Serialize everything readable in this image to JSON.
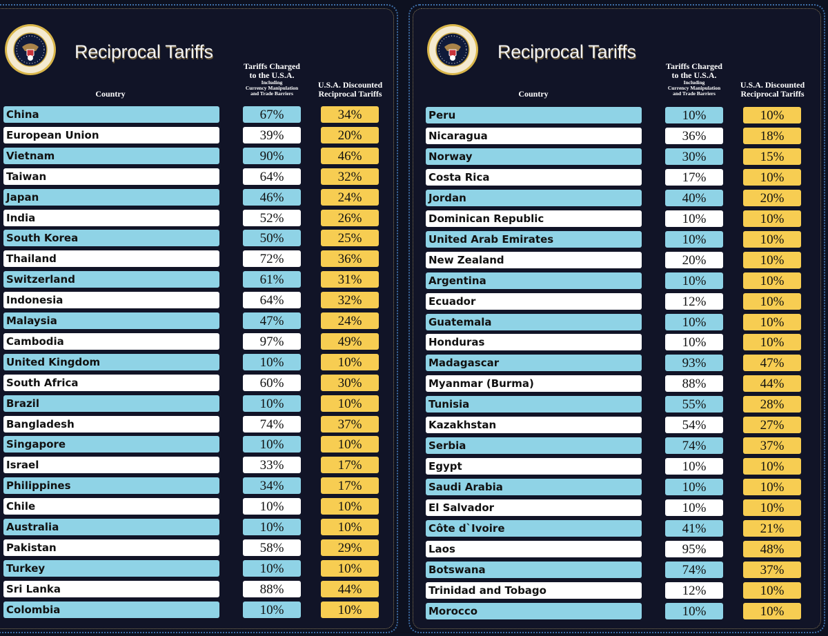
{
  "colors": {
    "blue": "#8fd3e6",
    "white": "#ffffff",
    "gold": "#f7cd52",
    "background": "#111427"
  },
  "header": {
    "title": "Reciprocal Tariffs",
    "col_country": "Country",
    "col_charged_1": "Tariffs Charged",
    "col_charged_2": "to the U.S.A.",
    "col_charged_3": "Including",
    "col_charged_4": "Currency Manipulation",
    "col_charged_5": "and Trade Barriers",
    "col_recip_1": "U.S.A. Discounted",
    "col_recip_2": "Reciprocal Tariffs",
    "seal_text": "SEAL OF THE PRESIDENT OF THE UNITED STATES"
  },
  "left_table": [
    {
      "country": "China",
      "charged": "67%",
      "reciprocal": "34%"
    },
    {
      "country": "European Union",
      "charged": "39%",
      "reciprocal": "20%"
    },
    {
      "country": "Vietnam",
      "charged": "90%",
      "reciprocal": "46%"
    },
    {
      "country": "Taiwan",
      "charged": "64%",
      "reciprocal": "32%"
    },
    {
      "country": "Japan",
      "charged": "46%",
      "reciprocal": "24%"
    },
    {
      "country": "India",
      "charged": "52%",
      "reciprocal": "26%"
    },
    {
      "country": "South Korea",
      "charged": "50%",
      "reciprocal": "25%"
    },
    {
      "country": "Thailand",
      "charged": "72%",
      "reciprocal": "36%"
    },
    {
      "country": "Switzerland",
      "charged": "61%",
      "reciprocal": "31%"
    },
    {
      "country": "Indonesia",
      "charged": "64%",
      "reciprocal": "32%"
    },
    {
      "country": "Malaysia",
      "charged": "47%",
      "reciprocal": "24%"
    },
    {
      "country": "Cambodia",
      "charged": "97%",
      "reciprocal": "49%"
    },
    {
      "country": "United Kingdom",
      "charged": "10%",
      "reciprocal": "10%"
    },
    {
      "country": "South Africa",
      "charged": "60%",
      "reciprocal": "30%"
    },
    {
      "country": "Brazil",
      "charged": "10%",
      "reciprocal": "10%"
    },
    {
      "country": "Bangladesh",
      "charged": "74%",
      "reciprocal": "37%"
    },
    {
      "country": "Singapore",
      "charged": "10%",
      "reciprocal": "10%"
    },
    {
      "country": "Israel",
      "charged": "33%",
      "reciprocal": "17%"
    },
    {
      "country": "Philippines",
      "charged": "34%",
      "reciprocal": "17%"
    },
    {
      "country": "Chile",
      "charged": "10%",
      "reciprocal": "10%"
    },
    {
      "country": "Australia",
      "charged": "10%",
      "reciprocal": "10%"
    },
    {
      "country": "Pakistan",
      "charged": "58%",
      "reciprocal": "29%"
    },
    {
      "country": "Turkey",
      "charged": "10%",
      "reciprocal": "10%"
    },
    {
      "country": "Sri Lanka",
      "charged": "88%",
      "reciprocal": "44%"
    },
    {
      "country": "Colombia",
      "charged": "10%",
      "reciprocal": "10%"
    }
  ],
  "right_table": [
    {
      "country": "Peru",
      "charged": "10%",
      "reciprocal": "10%"
    },
    {
      "country": "Nicaragua",
      "charged": "36%",
      "reciprocal": "18%"
    },
    {
      "country": "Norway",
      "charged": "30%",
      "reciprocal": "15%"
    },
    {
      "country": "Costa Rica",
      "charged": "17%",
      "reciprocal": "10%"
    },
    {
      "country": "Jordan",
      "charged": "40%",
      "reciprocal": "20%"
    },
    {
      "country": "Dominican Republic",
      "charged": "10%",
      "reciprocal": "10%"
    },
    {
      "country": "United Arab Emirates",
      "charged": "10%",
      "reciprocal": "10%"
    },
    {
      "country": "New Zealand",
      "charged": "20%",
      "reciprocal": "10%"
    },
    {
      "country": "Argentina",
      "charged": "10%",
      "reciprocal": "10%"
    },
    {
      "country": "Ecuador",
      "charged": "12%",
      "reciprocal": "10%"
    },
    {
      "country": "Guatemala",
      "charged": "10%",
      "reciprocal": "10%"
    },
    {
      "country": "Honduras",
      "charged": "10%",
      "reciprocal": "10%"
    },
    {
      "country": "Madagascar",
      "charged": "93%",
      "reciprocal": "47%"
    },
    {
      "country": "Myanmar (Burma)",
      "charged": "88%",
      "reciprocal": "44%"
    },
    {
      "country": "Tunisia",
      "charged": "55%",
      "reciprocal": "28%"
    },
    {
      "country": "Kazakhstan",
      "charged": "54%",
      "reciprocal": "27%"
    },
    {
      "country": "Serbia",
      "charged": "74%",
      "reciprocal": "37%"
    },
    {
      "country": "Egypt",
      "charged": "10%",
      "reciprocal": "10%"
    },
    {
      "country": "Saudi Arabia",
      "charged": "10%",
      "reciprocal": "10%"
    },
    {
      "country": "El Salvador",
      "charged": "10%",
      "reciprocal": "10%"
    },
    {
      "country": "Côte d`Ivoire",
      "charged": "41%",
      "reciprocal": "21%"
    },
    {
      "country": "Laos",
      "charged": "95%",
      "reciprocal": "48%"
    },
    {
      "country": "Botswana",
      "charged": "74%",
      "reciprocal": "37%"
    },
    {
      "country": "Trinidad and Tobago",
      "charged": "12%",
      "reciprocal": "10%"
    },
    {
      "country": "Morocco",
      "charged": "10%",
      "reciprocal": "10%"
    }
  ]
}
